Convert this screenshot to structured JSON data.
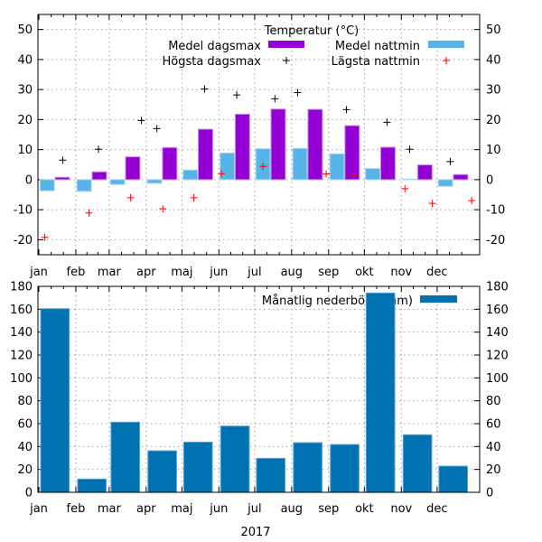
{
  "chart_data": [
    {
      "type": "bar",
      "legend_title": "Temperatur (°C)",
      "ylim": [
        -25,
        55
      ],
      "yticks": [
        -20,
        -10,
        0,
        10,
        20,
        30,
        40,
        50
      ],
      "xlim": [
        "2016-12-31",
        "2018-01-05"
      ],
      "categories": [
        "jan",
        "feb",
        "mar",
        "apr",
        "maj",
        "jun",
        "jul",
        "aug",
        "sep",
        "okt",
        "nov",
        "dec"
      ],
      "grid": true,
      "legend_placement": "top-right",
      "series": [
        {
          "name": "Medel dagsmax",
          "type": "bar",
          "color": "#9400d3",
          "values": [
            0.8,
            2.6,
            7.6,
            10.7,
            16.8,
            21.8,
            23.5,
            23.4,
            18.0,
            10.8,
            4.9,
            1.7
          ]
        },
        {
          "name": "Medel nattmin",
          "type": "bar",
          "color": "#56b4e9",
          "values": [
            -3.7,
            -3.9,
            -1.6,
            -1.2,
            3.2,
            8.9,
            10.3,
            10.4,
            8.6,
            3.7,
            0.2,
            -2.2
          ]
        },
        {
          "name": "Högsta dagsmax",
          "type": "scatter",
          "marker": "+",
          "color": "#000000",
          "points": [
            [
              "2017-01-21",
              6.5
            ],
            [
              "2017-02-20",
              10.1
            ],
            [
              "2017-03-28",
              19.7
            ],
            [
              "2017-04-10",
              17.0
            ],
            [
              "2017-05-20",
              30.2
            ],
            [
              "2017-06-16",
              28.2
            ],
            [
              "2017-07-18",
              26.9
            ],
            [
              "2017-08-06",
              29.0
            ],
            [
              "2017-09-16",
              23.3
            ],
            [
              "2017-10-20",
              19.1
            ],
            [
              "2017-11-08",
              10.1
            ],
            [
              "2017-12-12",
              6.0
            ]
          ]
        },
        {
          "name": "Lägsta nattmin",
          "type": "scatter",
          "marker": "+",
          "color": "#ff0000",
          "points": [
            [
              "2017-01-06",
              -19.2
            ],
            [
              "2017-02-12",
              -11.1
            ],
            [
              "2017-03-19",
              -6.0
            ],
            [
              "2017-04-15",
              -9.7
            ],
            [
              "2017-05-11",
              -6.0
            ],
            [
              "2017-06-03",
              2.0
            ],
            [
              "2017-07-08",
              4.4
            ],
            [
              "2017-08-30",
              1.9
            ],
            [
              "2017-09-22",
              1.4
            ],
            [
              "2017-11-04",
              -3.0
            ],
            [
              "2017-11-27",
              -7.9
            ],
            [
              "2017-12-30",
              -7.0
            ]
          ]
        }
      ]
    },
    {
      "type": "bar",
      "ylim": [
        0,
        180
      ],
      "yticks": [
        0,
        20,
        40,
        60,
        80,
        100,
        120,
        140,
        160,
        180
      ],
      "xlim": [
        "2016-12-31",
        "2018-01-05"
      ],
      "categories": [
        "jan",
        "feb",
        "mar",
        "apr",
        "maj",
        "jun",
        "jul",
        "aug",
        "sep",
        "okt",
        "nov",
        "dec"
      ],
      "xlabel": "2017",
      "grid": true,
      "legend_placement": "top-right",
      "series": [
        {
          "name": "Månatlig nederbörd (mm)",
          "color": "#0072b2",
          "values": [
            160.5,
            11.6,
            61.3,
            36.3,
            43.9,
            57.9,
            29.7,
            43.4,
            41.8,
            174.2,
            50.3,
            22.9
          ]
        }
      ]
    }
  ]
}
